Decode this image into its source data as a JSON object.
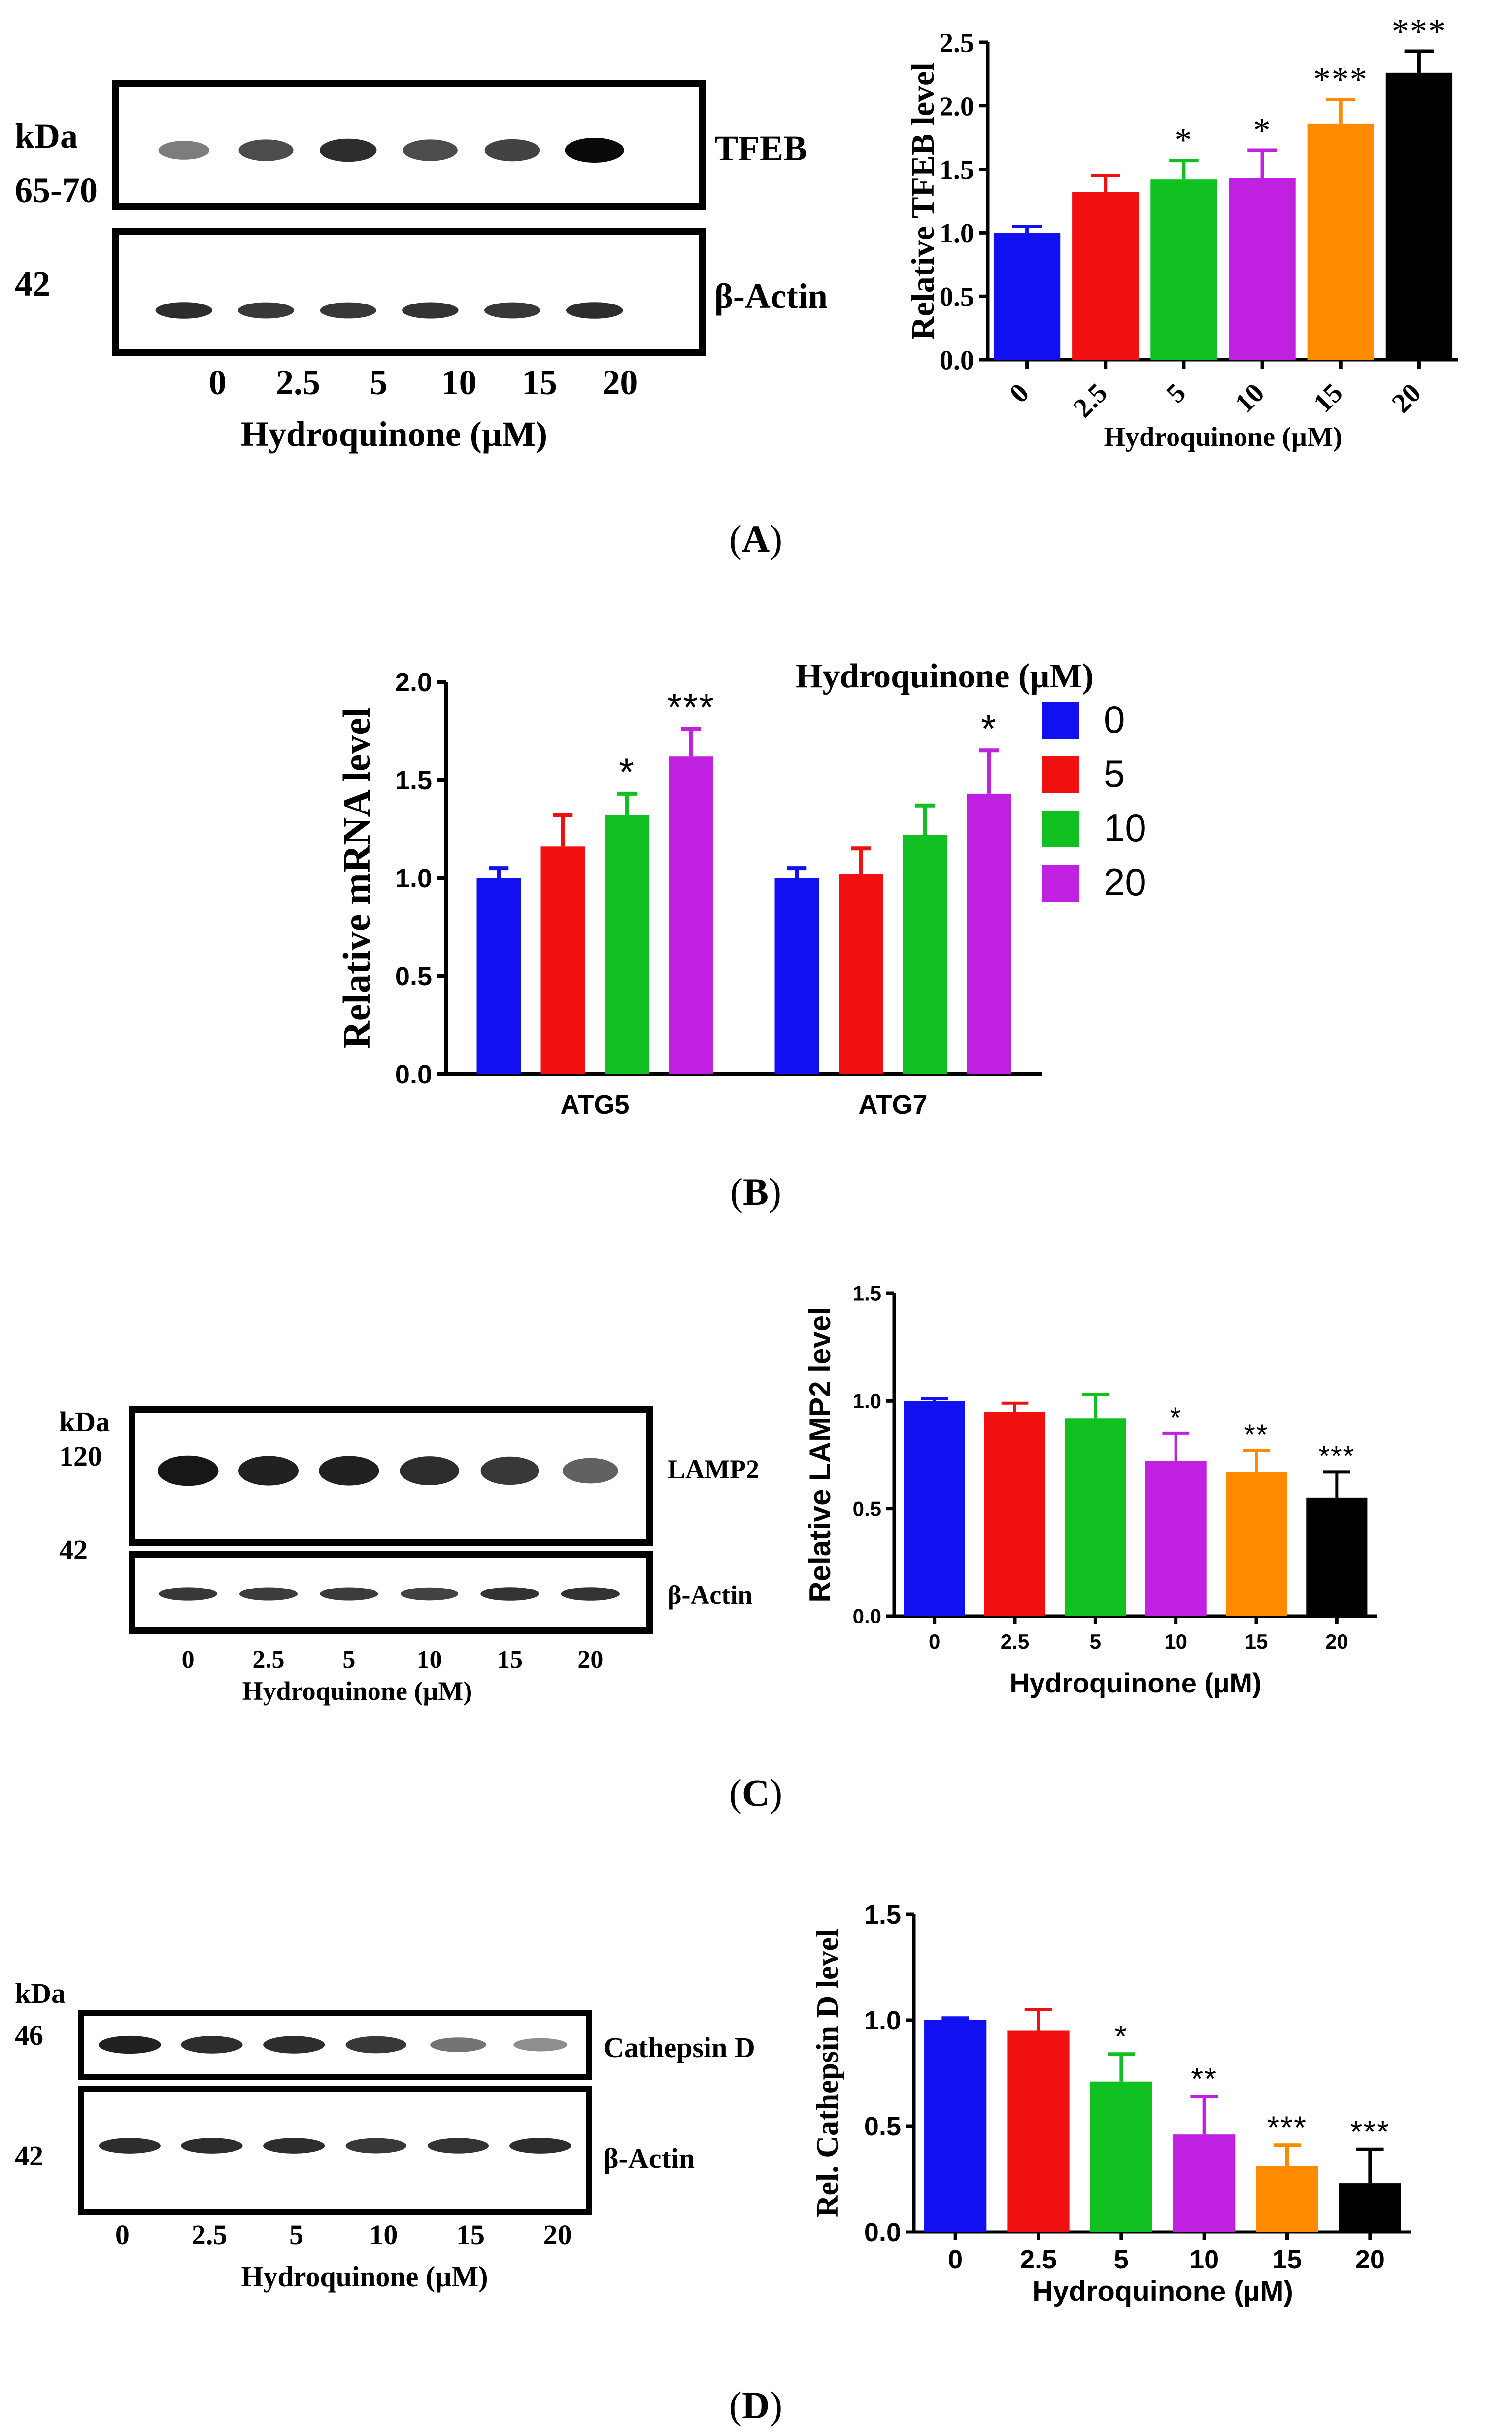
{
  "panel_labels": [
    "A",
    "B",
    "C",
    "D"
  ],
  "colors": {
    "blue": "#1010f0",
    "red": "#f01010",
    "green": "#10c020",
    "purple": "#c020e0",
    "orange": "#ff8a00",
    "black": "#000000",
    "axis": "#000000"
  },
  "blots": {
    "A": {
      "kda_label": "kDa",
      "top_mw": "65-70",
      "bottom_mw": "42",
      "top_protein": "TFEB",
      "bottom_protein": "β-Actin",
      "lanes": [
        "0",
        "2.5",
        "5",
        "10",
        "15",
        "20"
      ],
      "xlabel": "Hydroquinone (µM)",
      "top_band_intensity": [
        0.45,
        0.7,
        0.85,
        0.7,
        0.75,
        1.0
      ],
      "bottom_band_intensity": [
        0.85,
        0.8,
        0.8,
        0.82,
        0.8,
        0.85
      ]
    },
    "C": {
      "kda_label": "kDa",
      "top_mw": "120",
      "bottom_mw": "42",
      "top_protein": "LAMP2",
      "bottom_protein": "β-Actin",
      "lanes": [
        "0",
        "2.5",
        "5",
        "10",
        "15",
        "20"
      ],
      "xlabel": "Hydroquinone (µM)",
      "top_band_intensity": [
        0.95,
        0.9,
        0.9,
        0.85,
        0.8,
        0.6
      ],
      "bottom_band_intensity": [
        0.8,
        0.78,
        0.78,
        0.75,
        0.82,
        0.82
      ]
    },
    "D": {
      "kda_label": "kDa",
      "top_mw": "46",
      "bottom_mw": "42",
      "top_protein": "Cathepsin D",
      "bottom_protein": "β-Actin",
      "lanes": [
        "0",
        "2.5",
        "5",
        "10",
        "15",
        "20"
      ],
      "xlabel": "Hydroquinone (µM)",
      "top_band_intensity": [
        0.9,
        0.85,
        0.85,
        0.8,
        0.5,
        0.35
      ],
      "bottom_band_intensity": [
        0.85,
        0.85,
        0.85,
        0.8,
        0.82,
        0.85
      ]
    }
  },
  "chart_data": [
    {
      "id": "A",
      "type": "bar",
      "title": "",
      "ylabel": "Relative TFEB level",
      "xlabel": "Hydroquinone (µM)",
      "categories": [
        "0",
        "2.5",
        "5",
        "10",
        "15",
        "20"
      ],
      "values": [
        1.0,
        1.32,
        1.42,
        1.43,
        1.86,
        2.26
      ],
      "errors": [
        0.05,
        0.13,
        0.15,
        0.22,
        0.19,
        0.17
      ],
      "significance": [
        "",
        "",
        "*",
        "*",
        "***",
        "***"
      ],
      "bar_colors": [
        "#1010f0",
        "#f01010",
        "#10c020",
        "#c020e0",
        "#ff8a00",
        "#000000"
      ],
      "ylim": [
        0,
        2.5
      ],
      "yticks": [
        0.0,
        0.5,
        1.0,
        1.5,
        2.0,
        2.5
      ],
      "ytick_labels": [
        "0.0",
        "0.5",
        "1.0",
        "1.5",
        "2.0",
        "2.5"
      ],
      "xtick_rotation": "rotated",
      "grid": false
    },
    {
      "id": "B",
      "type": "bar",
      "title": "",
      "ylabel": "Relative mRNA level",
      "xlabel": "",
      "categories": [
        "ATG5",
        "ATG7"
      ],
      "legend_title": "Hydroquinone (µM)",
      "legend_position": "right",
      "series": [
        {
          "name": "0",
          "color": "#1010f0",
          "values": [
            1.0,
            1.0
          ],
          "errors": [
            0.05,
            0.05
          ],
          "significance": [
            "",
            ""
          ]
        },
        {
          "name": "5",
          "color": "#f01010",
          "values": [
            1.16,
            1.02
          ],
          "errors": [
            0.16,
            0.13
          ],
          "significance": [
            "",
            ""
          ]
        },
        {
          "name": "10",
          "color": "#10c020",
          "values": [
            1.32,
            1.22
          ],
          "errors": [
            0.11,
            0.15
          ],
          "significance": [
            "*",
            ""
          ]
        },
        {
          "name": "20",
          "color": "#c020e0",
          "values": [
            1.62,
            1.43
          ],
          "errors": [
            0.14,
            0.22
          ],
          "significance": [
            "***",
            "*"
          ]
        }
      ],
      "ylim": [
        0,
        2.0
      ],
      "yticks": [
        0.0,
        0.5,
        1.0,
        1.5,
        2.0
      ],
      "ytick_labels": [
        "0.0",
        "0.5",
        "1.0",
        "1.5",
        "2.0"
      ],
      "grid": false
    },
    {
      "id": "C",
      "type": "bar",
      "title": "",
      "ylabel": "Relative LAMP2 level",
      "xlabel": "Hydroquinone (µM)",
      "categories": [
        "0",
        "2.5",
        "5",
        "10",
        "15",
        "20"
      ],
      "values": [
        1.0,
        0.95,
        0.92,
        0.72,
        0.67,
        0.55
      ],
      "errors": [
        0.01,
        0.04,
        0.11,
        0.13,
        0.1,
        0.12
      ],
      "significance": [
        "",
        "",
        "",
        "*",
        "**",
        "***"
      ],
      "bar_colors": [
        "#1010f0",
        "#f01010",
        "#10c020",
        "#c020e0",
        "#ff8a00",
        "#000000"
      ],
      "ylim": [
        0,
        1.5
      ],
      "yticks": [
        0.0,
        0.5,
        1.0,
        1.5
      ],
      "ytick_labels": [
        "0.0",
        "0.5",
        "1.0",
        "1.5"
      ],
      "grid": false
    },
    {
      "id": "D",
      "type": "bar",
      "title": "",
      "ylabel": "Rel. Cathepsin D level",
      "xlabel": "Hydroquinone (µM)",
      "categories": [
        "0",
        "2.5",
        "5",
        "10",
        "15",
        "20"
      ],
      "values": [
        1.0,
        0.95,
        0.71,
        0.46,
        0.31,
        0.23
      ],
      "errors": [
        0.01,
        0.1,
        0.13,
        0.18,
        0.1,
        0.16
      ],
      "significance": [
        "",
        "",
        "*",
        "**",
        "***",
        "***"
      ],
      "bar_colors": [
        "#1010f0",
        "#f01010",
        "#10c020",
        "#c020e0",
        "#ff8a00",
        "#000000"
      ],
      "ylim": [
        0,
        1.5
      ],
      "yticks": [
        0.0,
        0.5,
        1.0,
        1.5
      ],
      "ytick_labels": [
        "0.0",
        "0.5",
        "1.0",
        "1.5"
      ],
      "grid": false
    }
  ]
}
